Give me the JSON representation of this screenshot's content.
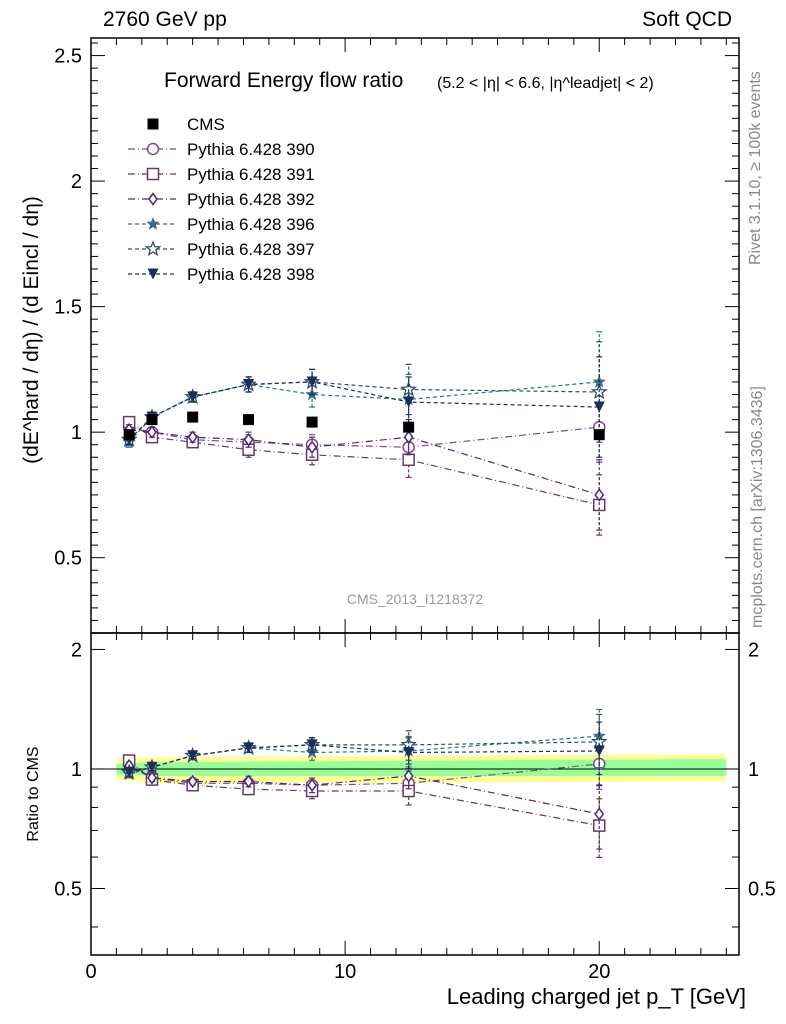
{
  "header": {
    "left": "2760 GeV pp",
    "right": "Soft QCD"
  },
  "side_labels": {
    "rivet": "Rivet 3.1.10, ≥ 100k events",
    "mcplots": "mcplots.cern.ch [arXiv:1306.3436]"
  },
  "watermark": "CMS_2013_I1218372",
  "colors": {
    "cms": "#000000",
    "p390": "#7a4a86",
    "p391": "#6a3a5e",
    "p392": "#4a2a7a",
    "p396": "#3a6e86",
    "p397": "#2e4e6e",
    "p398": "#1e2e5a",
    "band_yellow": "#ffff99",
    "band_green": "#99ff99"
  },
  "chart_data": {
    "type": "scatter",
    "title": "Forward Energy flow ratio",
    "title_cut": "(5.2 < |η| < 6.6, |η^leadjet| < 2)",
    "xlabel": "Leading charged jet p_T [GeV]",
    "ylabel_main": "(dE^hard / dη) / (d Eincl / dη)",
    "ylabel_ratio": "Ratio to CMS",
    "xlim": [
      0,
      25.5
    ],
    "ylim_main": [
      0.2,
      2.57
    ],
    "ylim_ratio": [
      0.34,
      2.2
    ],
    "x_ticks": [
      0,
      10,
      20
    ],
    "y_ticks_main": [
      0.5,
      1,
      1.5,
      2,
      2.5
    ],
    "y_tick_labels_main": [
      "0.5",
      "1",
      "1.5",
      "2",
      "2.5"
    ],
    "y_ticks_ratio": [
      0.5,
      1,
      2
    ],
    "y_tick_labels_ratio": [
      "0.5",
      "1",
      "2"
    ],
    "ratio_bands": {
      "x": [
        1,
        2.5,
        25
      ],
      "yellow": [
        [
          0.94,
          1.06
        ],
        [
          0.92,
          1.07
        ],
        [
          0.93,
          1.09
        ]
      ],
      "green": [
        [
          0.97,
          1.03
        ],
        [
          0.96,
          1.04
        ],
        [
          0.96,
          1.06
        ]
      ]
    },
    "x": [
      1.5,
      2.4,
      4.0,
      6.2,
      8.7,
      12.5,
      20.0
    ],
    "series": [
      {
        "name": "CMS",
        "key": "cms",
        "marker": "square-filled",
        "line": "none",
        "values": [
          0.99,
          1.05,
          1.06,
          1.05,
          1.04,
          1.02,
          0.99
        ],
        "errors": [
          0.0,
          0.0,
          0.0,
          0.0,
          0.0,
          0.0,
          0.0
        ],
        "ratio": [
          1.0,
          1.0,
          1.0,
          1.0,
          1.0,
          1.0,
          1.0
        ]
      },
      {
        "name": "Pythia 6.428 390",
        "key": "p390",
        "marker": "circle-open",
        "line": "dashdot",
        "values": [
          1.02,
          1.0,
          0.97,
          0.96,
          0.95,
          0.94,
          1.02
        ],
        "errors": [
          0.02,
          0.02,
          0.02,
          0.03,
          0.04,
          0.07,
          0.14
        ],
        "ratio": [
          1.03,
          0.95,
          0.92,
          0.92,
          0.91,
          0.92,
          1.03
        ]
      },
      {
        "name": "Pythia 6.428 391",
        "key": "p391",
        "marker": "square-open",
        "line": "dashdot",
        "values": [
          1.04,
          0.98,
          0.96,
          0.93,
          0.91,
          0.89,
          0.71
        ],
        "errors": [
          0.02,
          0.02,
          0.02,
          0.03,
          0.04,
          0.07,
          0.12
        ],
        "ratio": [
          1.05,
          0.94,
          0.91,
          0.89,
          0.88,
          0.88,
          0.72
        ]
      },
      {
        "name": "Pythia 6.428 392",
        "key": "p392",
        "marker": "diamond-open",
        "line": "dashdot",
        "values": [
          1.01,
          1.0,
          0.98,
          0.97,
          0.94,
          0.98,
          0.75
        ],
        "errors": [
          0.02,
          0.02,
          0.02,
          0.03,
          0.04,
          0.07,
          0.14
        ],
        "ratio": [
          1.02,
          0.95,
          0.93,
          0.93,
          0.91,
          0.96,
          0.77
        ]
      },
      {
        "name": "Pythia 6.428 396",
        "key": "p396",
        "marker": "star-filled",
        "line": "dashed",
        "values": [
          0.96,
          1.06,
          1.14,
          1.19,
          1.15,
          1.13,
          1.2
        ],
        "errors": [
          0.02,
          0.02,
          0.02,
          0.03,
          0.05,
          0.1,
          0.2
        ],
        "ratio": [
          0.97,
          1.01,
          1.08,
          1.13,
          1.1,
          1.11,
          1.21
        ]
      },
      {
        "name": "Pythia 6.428 397",
        "key": "p397",
        "marker": "star-open",
        "line": "dashed",
        "values": [
          0.97,
          1.06,
          1.14,
          1.19,
          1.2,
          1.17,
          1.16
        ],
        "errors": [
          0.02,
          0.02,
          0.02,
          0.03,
          0.05,
          0.1,
          0.2
        ],
        "ratio": [
          0.98,
          1.01,
          1.08,
          1.13,
          1.15,
          1.15,
          1.17
        ]
      },
      {
        "name": "Pythia 6.428 398",
        "key": "p398",
        "marker": "triangle-down-filled",
        "line": "dashed",
        "values": [
          0.97,
          1.06,
          1.14,
          1.19,
          1.2,
          1.12,
          1.1
        ],
        "errors": [
          0.02,
          0.02,
          0.02,
          0.03,
          0.05,
          0.1,
          0.2
        ],
        "ratio": [
          0.98,
          1.01,
          1.08,
          1.13,
          1.15,
          1.1,
          1.11
        ]
      }
    ]
  }
}
